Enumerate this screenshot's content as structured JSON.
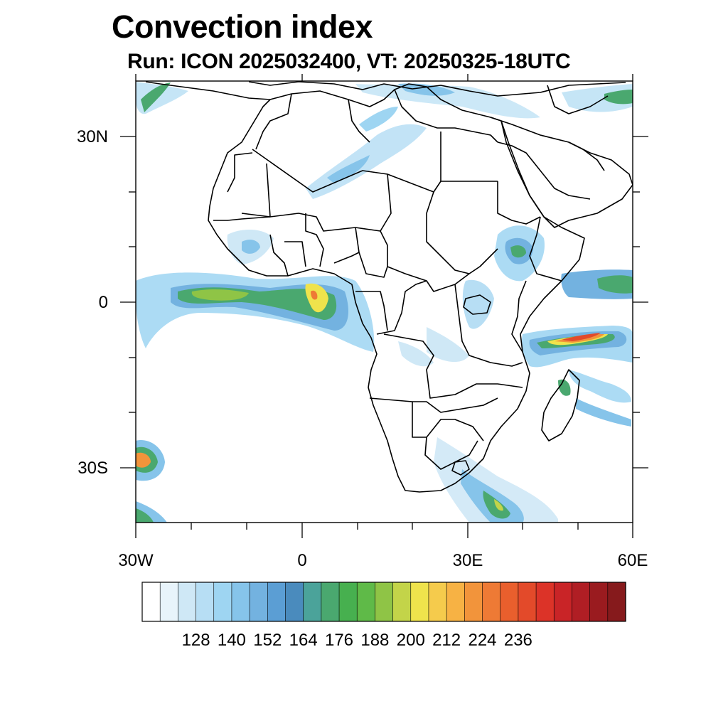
{
  "title": "Convection index",
  "subtitle": "Run: ICON 2025032400,  VT: 20250325-18UTC",
  "axes": {
    "lat_labels": [
      "30N",
      "0",
      "30S"
    ],
    "lon_labels": [
      "30W",
      "0",
      "30E",
      "60E"
    ]
  },
  "colorbar": {
    "labels": [
      "128",
      "140",
      "152",
      "164",
      "176",
      "188",
      "200",
      "212",
      "224",
      "236"
    ],
    "colors": [
      "#ffffff",
      "#e8f4fb",
      "#cfe8f6",
      "#b7def4",
      "#9ed5f2",
      "#86c4ea",
      "#73b2e0",
      "#5b9ed4",
      "#4a8bbd",
      "#4ba39a",
      "#4aa86f",
      "#47b04f",
      "#5fba48",
      "#8fc446",
      "#c3d449",
      "#efe34c",
      "#f5cb4c",
      "#f7b244",
      "#f2943b",
      "#ee7a35",
      "#e95f2d",
      "#e34a2a",
      "#dc3328",
      "#c92427",
      "#b01e24",
      "#9a1b1f",
      "#861a1c"
    ]
  },
  "map_data": {
    "domain": {
      "lon_min": -30,
      "lon_max": 60,
      "lat_min": -40,
      "lat_max": 40
    },
    "field": "Convection index",
    "regions": [
      {
        "name": "equatorial-atlantic-band",
        "level": "high"
      },
      {
        "name": "east-africa-ethiopia",
        "level": "moderate"
      },
      {
        "name": "indian-ocean-madagascar",
        "level": "very-high"
      },
      {
        "name": "southeast-africa-plume",
        "level": "moderate"
      },
      {
        "name": "south-atlantic-cell",
        "level": "high"
      },
      {
        "name": "sahara-streak",
        "level": "low"
      },
      {
        "name": "mediterranean",
        "level": "low"
      }
    ]
  }
}
